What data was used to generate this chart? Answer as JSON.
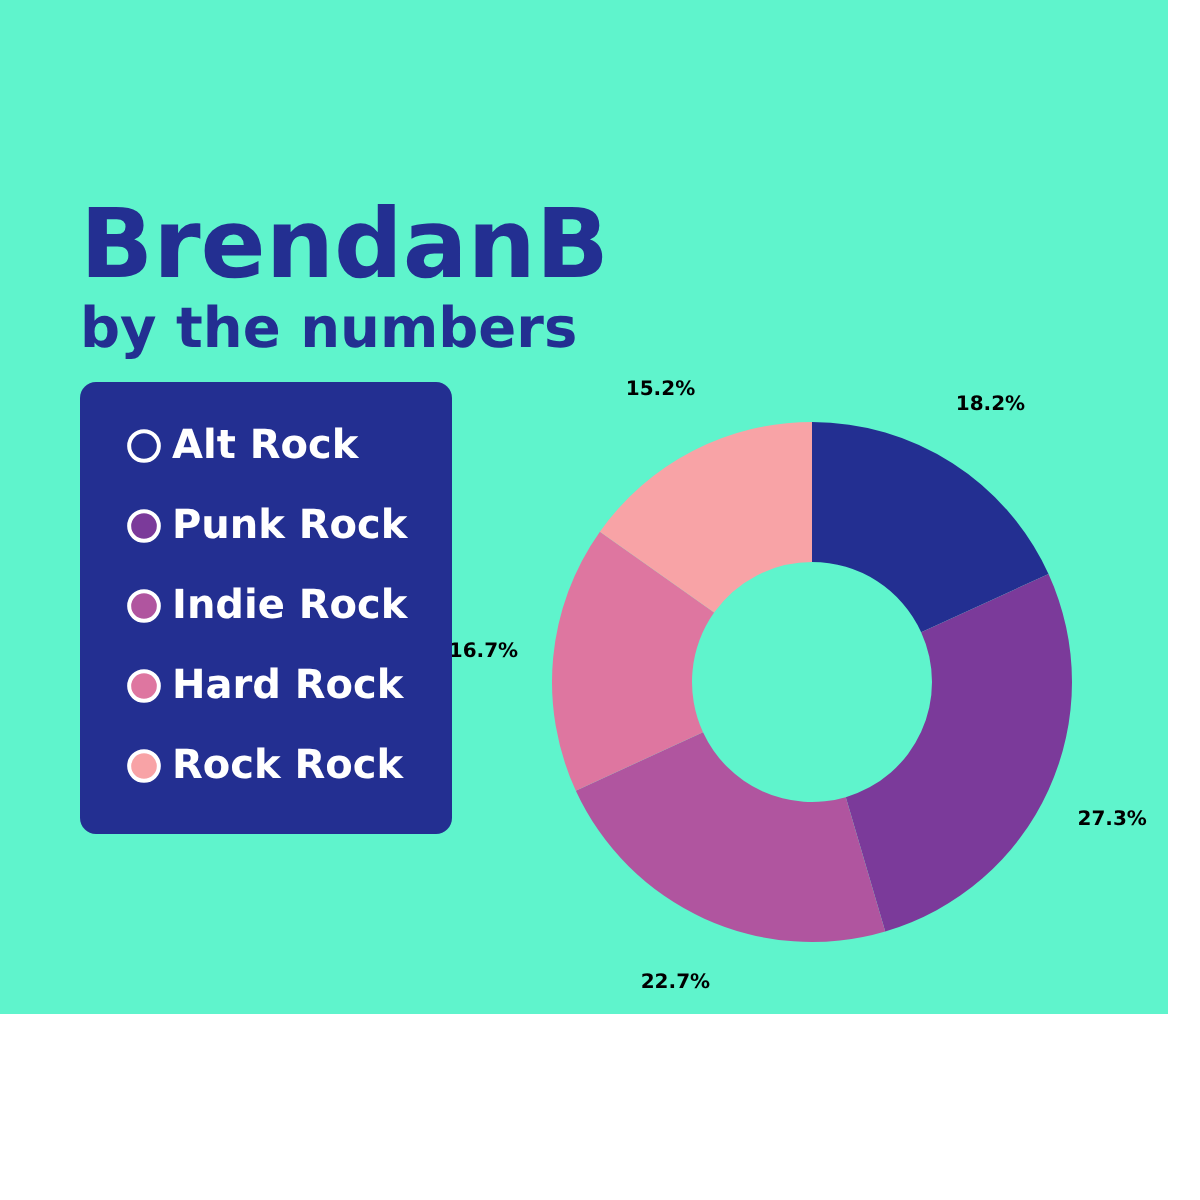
{
  "chart_data": {
    "type": "donut",
    "title": "BrendanB",
    "subtitle": "by the numbers",
    "categories": [
      "Alt Rock",
      "Punk Rock",
      "Indie Rock",
      "Hard Rock",
      "Rock Rock"
    ],
    "values": [
      18.2,
      27.3,
      22.7,
      16.7,
      15.2
    ],
    "value_labels": [
      "18.2%",
      "27.3%",
      "22.7%",
      "16.7%",
      "15.2%"
    ],
    "colors": [
      "#232f91",
      "#7b3a9a",
      "#b0559f",
      "#de76a0",
      "#f8a3a6"
    ],
    "legend": "left"
  }
}
